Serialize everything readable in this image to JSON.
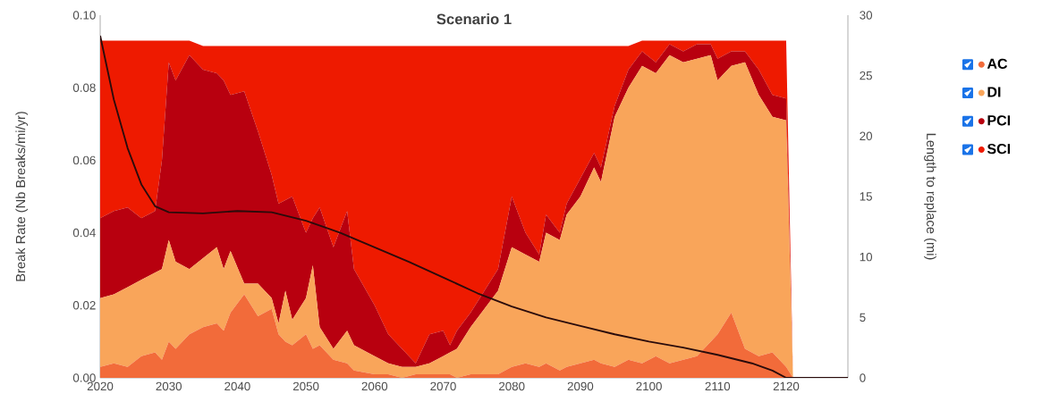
{
  "chart_data": {
    "type": "area",
    "title": "Scenario 1",
    "ylabel": "Break Rate (Nb Breaks/mi/yr)",
    "y2label": "Length to replace (mi)",
    "stacked": true,
    "legend": "right",
    "x": [
      2020,
      2022,
      2024,
      2026,
      2028,
      2029,
      2030,
      2031,
      2033,
      2035,
      2037,
      2038,
      2039,
      2041,
      2043,
      2045,
      2046,
      2047,
      2048,
      2050,
      2051,
      2052,
      2054,
      2056,
      2057,
      2060,
      2062,
      2064,
      2066,
      2068,
      2070,
      2071,
      2072,
      2074,
      2078,
      2080,
      2082,
      2084,
      2085,
      2087,
      2088,
      2090,
      2092,
      2093,
      2095,
      2097,
      2099,
      2101,
      2103,
      2105,
      2107,
      2109,
      2110,
      2112,
      2114,
      2116,
      2118,
      2120,
      2121
    ],
    "series": [
      {
        "name": "AC",
        "color": "#f26b3a",
        "values": [
          0.003,
          0.004,
          0.003,
          0.006,
          0.007,
          0.005,
          0.01,
          0.008,
          0.012,
          0.014,
          0.015,
          0.013,
          0.018,
          0.023,
          0.017,
          0.019,
          0.012,
          0.01,
          0.009,
          0.012,
          0.008,
          0.009,
          0.005,
          0.004,
          0.002,
          0.001,
          0.001,
          0,
          0.001,
          0.001,
          0.001,
          0.001,
          0,
          0.001,
          0.001,
          0.003,
          0.004,
          0.003,
          0.004,
          0.002,
          0.003,
          0.004,
          0.005,
          0.004,
          0.003,
          0.005,
          0.004,
          0.006,
          0.004,
          0.005,
          0.006,
          0.01,
          0.012,
          0.018,
          0.008,
          0.006,
          0.007,
          0.003,
          0
        ]
      },
      {
        "name": "DI",
        "color": "#f9a55a",
        "values": [
          0.019,
          0.019,
          0.022,
          0.021,
          0.022,
          0.025,
          0.028,
          0.024,
          0.018,
          0.019,
          0.021,
          0.017,
          0.017,
          0.003,
          0.009,
          0.003,
          0.003,
          0.014,
          0.007,
          0.01,
          0.023,
          0.005,
          0.003,
          0.009,
          0.007,
          0.005,
          0.003,
          0.003,
          0.002,
          0.003,
          0.005,
          0.006,
          0.008,
          0.013,
          0.023,
          0.033,
          0.03,
          0.029,
          0.036,
          0.036,
          0.042,
          0.046,
          0.053,
          0.05,
          0.069,
          0.075,
          0.082,
          0.078,
          0.085,
          0.082,
          0.082,
          0.079,
          0.07,
          0.068,
          0.079,
          0.072,
          0.065,
          0.068,
          0
        ]
      },
      {
        "name": "PCI",
        "color": "#b8000f",
        "values": [
          0.022,
          0.023,
          0.022,
          0.017,
          0.017,
          0.03,
          0.049,
          0.05,
          0.059,
          0.052,
          0.048,
          0.052,
          0.043,
          0.053,
          0.042,
          0.034,
          0.033,
          0.025,
          0.034,
          0.018,
          0.013,
          0.033,
          0.028,
          0.033,
          0.021,
          0.014,
          0.008,
          0.005,
          0.001,
          0.008,
          0.007,
          0.002,
          0.005,
          0.004,
          0.006,
          0.014,
          0.006,
          0.002,
          0.005,
          0.002,
          0.003,
          0.005,
          0.004,
          0.004,
          0.003,
          0.005,
          0.004,
          0.003,
          0.003,
          0.003,
          0.004,
          0.003,
          0.006,
          0.004,
          0.003,
          0.007,
          0.006,
          0.006,
          0
        ]
      },
      {
        "name": "SCI",
        "color": "#ee1a00",
        "values": [
          0.049,
          0.047,
          0.046,
          0.049,
          0.047,
          0.033,
          0.006,
          0.011,
          0.004,
          0.0065,
          0.0075,
          0.0095,
          0.0135,
          0.0125,
          0.0235,
          0.0355,
          0.0435,
          0.0425,
          0.0415,
          0.0515,
          0.0475,
          0.0445,
          0.0555,
          0.0455,
          0.0615,
          0.0715,
          0.0795,
          0.0835,
          0.0875,
          0.0795,
          0.0785,
          0.0825,
          0.0785,
          0.0735,
          0.0615,
          0.0415,
          0.0515,
          0.0575,
          0.0465,
          0.0515,
          0.0435,
          0.0365,
          0.0295,
          0.0335,
          0.0165,
          0.0065,
          0.003,
          0.006,
          0.001,
          0.003,
          0.001,
          0.001,
          0.005,
          0.003,
          0.003,
          0.008,
          0.015,
          0.016,
          0
        ]
      },
      {
        "type": "line",
        "axis": "y2",
        "color": "#2a0b0b",
        "x": [
          2020,
          2022,
          2024,
          2026,
          2028,
          2030,
          2035,
          2040,
          2045,
          2050,
          2055,
          2060,
          2065,
          2070,
          2075,
          2080,
          2085,
          2090,
          2095,
          2100,
          2105,
          2110,
          2115,
          2118,
          2120,
          2129
        ],
        "values": [
          28.3,
          23,
          19,
          16,
          14.2,
          13.7,
          13.6,
          13.8,
          13.7,
          13.0,
          12.0,
          10.8,
          9.6,
          8.3,
          7.0,
          5.9,
          5.0,
          4.3,
          3.6,
          3.0,
          2.5,
          1.9,
          1.2,
          0.6,
          0,
          0
        ]
      }
    ],
    "xlim": [
      2020,
      2129
    ],
    "xticks": [
      2020,
      2030,
      2040,
      2050,
      2060,
      2070,
      2080,
      2090,
      2100,
      2110,
      2120
    ],
    "ylim": [
      0,
      0.1
    ],
    "yticks": [
      {
        "value": 0,
        "label": "0.00"
      },
      {
        "value": 0.02,
        "label": "0.02"
      },
      {
        "value": 0.04,
        "label": "0.04"
      },
      {
        "value": 0.06,
        "label": "0.06"
      },
      {
        "value": 0.08,
        "label": "0.08"
      },
      {
        "value": 0.1,
        "label": "0.10"
      }
    ],
    "y2lim": [
      0,
      30
    ],
    "y2ticks": [
      0,
      5,
      10,
      15,
      20,
      25,
      30
    ]
  }
}
